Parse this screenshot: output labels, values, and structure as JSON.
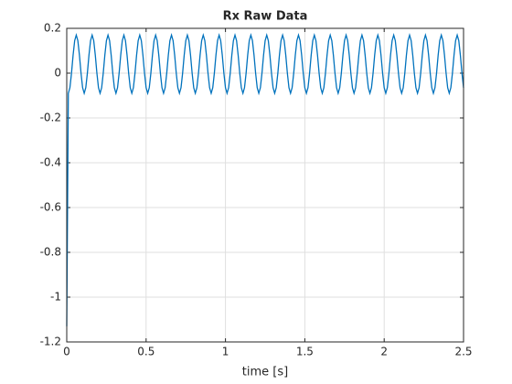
{
  "chart_data": {
    "type": "line",
    "title": "Rx Raw Data",
    "xlabel": "time [s]",
    "xlim": [
      0,
      2.5
    ],
    "xticks": [
      0,
      0.5,
      1,
      1.5,
      2,
      2.5
    ],
    "ylim": [
      -1.2,
      0.2
    ],
    "yticks": [
      0.2,
      0,
      -0.2,
      -0.4,
      -0.6,
      -0.8,
      -1,
      -1.2
    ],
    "grid": true,
    "x": [
      0,
      0.01,
      0.02,
      0.03,
      0.04,
      0.05,
      0.06,
      0.07,
      0.08,
      0.09,
      0.1,
      0.11,
      0.12,
      0.13,
      0.14,
      0.15,
      0.16,
      0.17,
      0.18,
      0.19,
      0.2,
      0.21,
      0.22,
      0.23,
      0.24,
      0.25,
      0.26,
      0.27,
      0.28,
      0.29,
      0.3,
      0.31,
      0.32,
      0.33,
      0.34,
      0.35,
      0.36,
      0.37,
      0.38,
      0.39,
      0.4,
      0.41,
      0.42,
      0.43,
      0.44,
      0.45,
      0.46,
      0.47,
      0.48,
      0.49,
      0.5,
      0.51,
      0.52,
      0.53,
      0.54,
      0.55,
      0.56,
      0.57,
      0.58,
      0.59,
      0.6,
      0.61,
      0.62,
      0.63,
      0.64,
      0.65,
      0.66,
      0.67,
      0.68,
      0.69,
      0.7,
      0.71,
      0.72,
      0.73,
      0.74,
      0.75,
      0.76,
      0.77,
      0.78,
      0.79,
      0.8,
      0.81,
      0.82,
      0.83,
      0.84,
      0.85,
      0.86,
      0.87,
      0.88,
      0.89,
      0.9,
      0.91,
      0.92,
      0.93,
      0.94,
      0.95,
      0.96,
      0.97,
      0.98,
      0.99,
      1,
      1.01,
      1.02,
      1.03,
      1.04,
      1.05,
      1.06,
      1.07,
      1.08,
      1.09,
      1.1,
      1.11,
      1.12,
      1.13,
      1.14,
      1.15,
      1.16,
      1.17,
      1.18,
      1.19,
      1.2,
      1.21,
      1.22,
      1.23,
      1.24,
      1.25,
      1.26,
      1.27,
      1.28,
      1.29,
      1.3,
      1.31,
      1.32,
      1.33,
      1.34,
      1.35,
      1.36,
      1.37,
      1.38,
      1.39,
      1.4,
      1.41,
      1.42,
      1.43,
      1.44,
      1.45,
      1.46,
      1.47,
      1.48,
      1.49,
      1.5,
      1.51,
      1.52,
      1.53,
      1.54,
      1.55,
      1.56,
      1.57,
      1.58,
      1.59,
      1.6,
      1.61,
      1.62,
      1.63,
      1.64,
      1.65,
      1.66,
      1.67,
      1.68,
      1.69,
      1.7,
      1.71,
      1.72,
      1.73,
      1.74,
      1.75,
      1.76,
      1.77,
      1.78,
      1.79,
      1.8,
      1.81,
      1.82,
      1.83,
      1.84,
      1.85,
      1.86,
      1.87,
      1.88,
      1.89,
      1.9,
      1.91,
      1.92,
      1.93,
      1.94,
      1.95,
      1.96,
      1.97,
      1.98,
      1.99,
      2,
      2.01,
      2.02,
      2.03,
      2.04,
      2.05,
      2.06,
      2.07,
      2.08,
      2.09,
      2.1,
      2.11,
      2.12,
      2.13,
      2.14,
      2.15,
      2.16,
      2.17,
      2.18,
      2.19,
      2.2,
      2.21,
      2.22,
      2.23,
      2.24,
      2.25,
      2.26,
      2.27,
      2.28,
      2.29,
      2.3,
      2.31,
      2.32,
      2.33,
      2.34,
      2.35,
      2.36,
      2.37,
      2.38,
      2.39,
      2.4,
      2.41,
      2.42,
      2.43,
      2.44,
      2.45,
      2.46,
      2.47,
      2.48,
      2.49,
      2.5
    ],
    "series": [
      {
        "name": "Rx",
        "color": "#0072bd",
        "values": [
          -1.13,
          -0.09,
          -0.065,
          0,
          0.08,
          0.145,
          0.17,
          0.145,
          0.08,
          0,
          -0.065,
          -0.09,
          -0.065,
          0,
          0.08,
          0.145,
          0.17,
          0.145,
          0.08,
          0,
          -0.065,
          -0.09,
          -0.065,
          0,
          0.08,
          0.145,
          0.17,
          0.145,
          0.08,
          0,
          -0.065,
          -0.09,
          -0.065,
          0,
          0.08,
          0.145,
          0.17,
          0.145,
          0.08,
          0,
          -0.065,
          -0.09,
          -0.065,
          0,
          0.08,
          0.145,
          0.17,
          0.145,
          0.08,
          0,
          -0.065,
          -0.09,
          -0.065,
          0,
          0.08,
          0.145,
          0.17,
          0.145,
          0.08,
          0,
          -0.065,
          -0.09,
          -0.065,
          0,
          0.08,
          0.145,
          0.17,
          0.145,
          0.08,
          0,
          -0.065,
          -0.09,
          -0.065,
          0,
          0.08,
          0.145,
          0.17,
          0.145,
          0.08,
          0,
          -0.065,
          -0.09,
          -0.065,
          0,
          0.08,
          0.145,
          0.17,
          0.145,
          0.08,
          0,
          -0.065,
          -0.09,
          -0.065,
          0,
          0.08,
          0.145,
          0.17,
          0.145,
          0.08,
          0,
          -0.065,
          -0.09,
          -0.065,
          0,
          0.08,
          0.145,
          0.17,
          0.145,
          0.08,
          0,
          -0.065,
          -0.09,
          -0.065,
          0,
          0.08,
          0.145,
          0.17,
          0.145,
          0.08,
          0,
          -0.065,
          -0.09,
          -0.065,
          0,
          0.08,
          0.145,
          0.17,
          0.145,
          0.08,
          0,
          -0.065,
          -0.09,
          -0.065,
          0,
          0.08,
          0.145,
          0.17,
          0.145,
          0.08,
          0,
          -0.065,
          -0.09,
          -0.065,
          0,
          0.08,
          0.145,
          0.17,
          0.145,
          0.08,
          0,
          -0.065,
          -0.09,
          -0.065,
          0,
          0.08,
          0.145,
          0.17,
          0.145,
          0.08,
          0,
          -0.065,
          -0.09,
          -0.065,
          0,
          0.08,
          0.145,
          0.17,
          0.145,
          0.08,
          0,
          -0.065,
          -0.09,
          -0.065,
          0,
          0.08,
          0.145,
          0.17,
          0.145,
          0.08,
          0,
          -0.065,
          -0.09,
          -0.065,
          0,
          0.08,
          0.145,
          0.17,
          0.145,
          0.08,
          0,
          -0.065,
          -0.09,
          -0.065,
          0,
          0.08,
          0.145,
          0.17,
          0.145,
          0.08,
          0,
          -0.065,
          -0.09,
          -0.065,
          0,
          0.08,
          0.145,
          0.17,
          0.145,
          0.08,
          0,
          -0.065,
          -0.09,
          -0.065,
          0,
          0.08,
          0.145,
          0.17,
          0.145,
          0.08,
          0,
          -0.065,
          -0.09,
          -0.065,
          0,
          0.08,
          0.145,
          0.17,
          0.145,
          0.08,
          0,
          -0.065,
          -0.09,
          -0.065,
          0,
          0.08,
          0.145,
          0.17,
          0.145,
          0.08,
          0,
          -0.065,
          -0.09,
          -0.065,
          0,
          0.08,
          0.145,
          0.17,
          0.145,
          0.08,
          0,
          -0.065
        ]
      }
    ]
  }
}
